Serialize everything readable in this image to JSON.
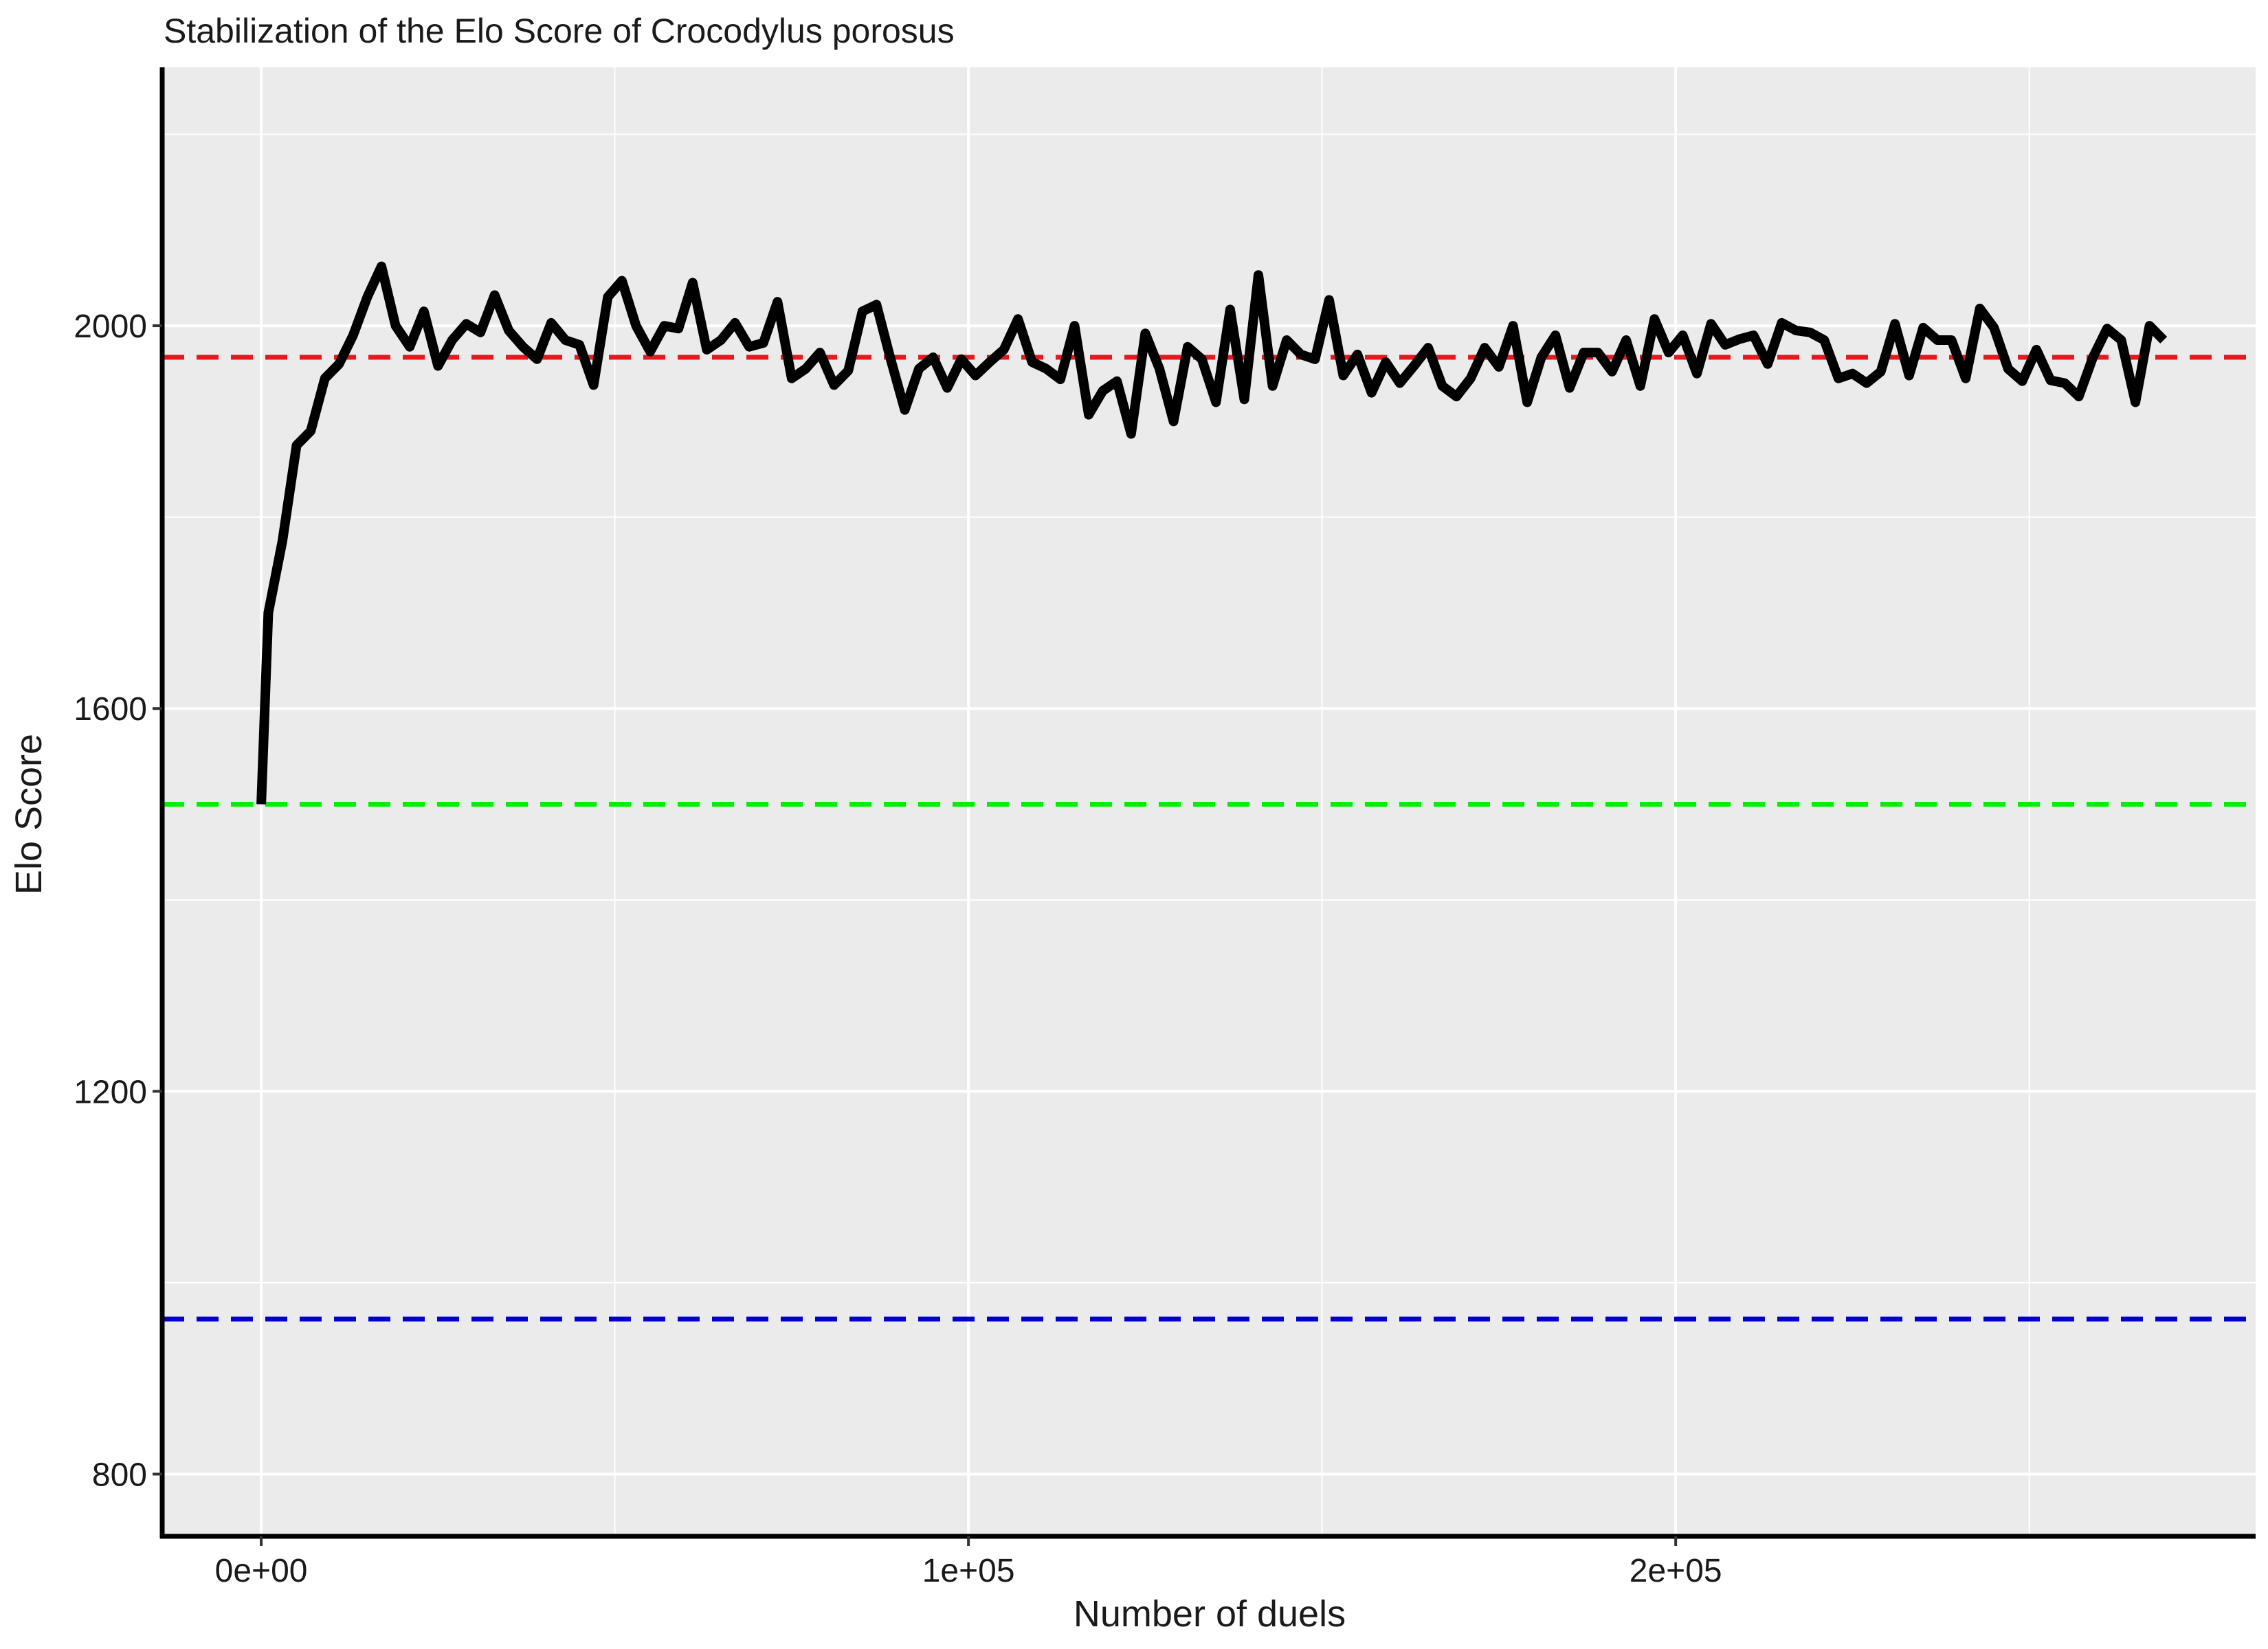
{
  "chart_data": {
    "type": "line",
    "title": "Stabilization of the Elo Score of Crocodylus porosus",
    "xlabel": "Number of duels",
    "ylabel": "Elo Score",
    "xlim": [
      -14000,
      282000
    ],
    "ylim": [
      735,
      2270
    ],
    "x_ticks": [
      {
        "value": 0,
        "label": "0e+00"
      },
      {
        "value": 100000,
        "label": "1e+05"
      },
      {
        "value": 200000,
        "label": "2e+05"
      }
    ],
    "y_ticks": [
      {
        "value": 800,
        "label": "800"
      },
      {
        "value": 1200,
        "label": "1200"
      },
      {
        "value": 1600,
        "label": "1600"
      },
      {
        "value": 2000,
        "label": "2000"
      }
    ],
    "x_minor_grid": [
      50000,
      150000,
      250000
    ],
    "y_minor_grid": [
      1000,
      1400,
      1800,
      2200
    ],
    "grid": true,
    "background": "#ebebeb",
    "reference_lines": [
      {
        "y": 1967,
        "color": "#e41a1c",
        "style": "dashed"
      },
      {
        "y": 1500,
        "color": "#00ee00",
        "style": "dashed"
      },
      {
        "y": 962,
        "color": "#0000cc",
        "style": "dashed"
      }
    ],
    "series": [
      {
        "color": "#000000",
        "x": [
          0,
          1000,
          3000,
          5000,
          7000,
          9000,
          11000,
          13000,
          15000,
          17000,
          19000,
          21000,
          23000,
          25000,
          27000,
          29000,
          31000,
          33000,
          35000,
          37000,
          39000,
          41000,
          43000,
          45000,
          47000,
          49000,
          51000,
          53000,
          55000,
          57000,
          59000,
          61000,
          63000,
          65000,
          67000,
          69000,
          71000,
          73000,
          75000,
          77000,
          79000,
          81000,
          83000,
          85000,
          87000,
          89000,
          91000,
          93000,
          95000,
          97000,
          99000,
          101000,
          103000,
          105000,
          107000,
          109000,
          111000,
          113000,
          115000,
          117000,
          119000,
          121000,
          123000,
          125000,
          127000,
          129000,
          131000,
          133000,
          135000,
          137000,
          139000,
          141000,
          143000,
          145000,
          147000,
          149000,
          151000,
          153000,
          155000,
          157000,
          159000,
          161000,
          163000,
          165000,
          167000,
          169000,
          171000,
          173000,
          175000,
          177000,
          179000,
          181000,
          183000,
          185000,
          187000,
          189000,
          191000,
          193000,
          195000,
          197000,
          199000,
          201000,
          203000,
          205000,
          207000,
          209000,
          211000,
          213000,
          215000,
          217000,
          219000,
          221000,
          223000,
          225000,
          227000,
          229000,
          231000,
          233000,
          235000,
          237000,
          239000,
          241000,
          243000,
          245000,
          247000,
          249000,
          251000,
          253000,
          255000,
          257000,
          259000,
          261000,
          263000,
          265000,
          267000,
          269000
        ],
        "y": [
          1500,
          1700,
          1775,
          1875,
          1890,
          1945,
          1960,
          1990,
          2030,
          2062,
          2000,
          1978,
          2015,
          1958,
          1985,
          2002,
          1993,
          2032,
          1995,
          1978,
          1965,
          2003,
          1985,
          1980,
          1938,
          2030,
          2047,
          2000,
          1973,
          2000,
          1997,
          2045,
          1975,
          1985,
          2003,
          1978,
          1982,
          2025,
          1945,
          1955,
          1972,
          1938,
          1953,
          2015,
          2022,
          1965,
          1912,
          1955,
          1967,
          1935,
          1965,
          1948,
          1962,
          1975,
          2007,
          1962,
          1955,
          1944,
          2000,
          1907,
          1932,
          1942,
          1887,
          1992,
          1955,
          1900,
          1978,
          1965,
          1920,
          2017,
          1923,
          2053,
          1937,
          1985,
          1970,
          1965,
          2027,
          1948,
          1970,
          1930,
          1962,
          1940,
          1958,
          1977,
          1937,
          1926,
          1945,
          1977,
          1957,
          2000,
          1920,
          1967,
          1990,
          1935,
          1972,
          1972,
          1952,
          1985,
          1937,
          2007,
          1972,
          1990,
          1950,
          2002,
          1980,
          1986,
          1990,
          1960,
          2003,
          1995,
          1993,
          1985,
          1945,
          1950,
          1940,
          1952,
          2002,
          1948,
          1998,
          1985,
          1985,
          1945,
          2018,
          1998,
          1955,
          1942,
          1975,
          1943,
          1940,
          1926,
          1967,
          1997,
          1985,
          1920,
          2000,
          1985
        ]
      }
    ]
  }
}
